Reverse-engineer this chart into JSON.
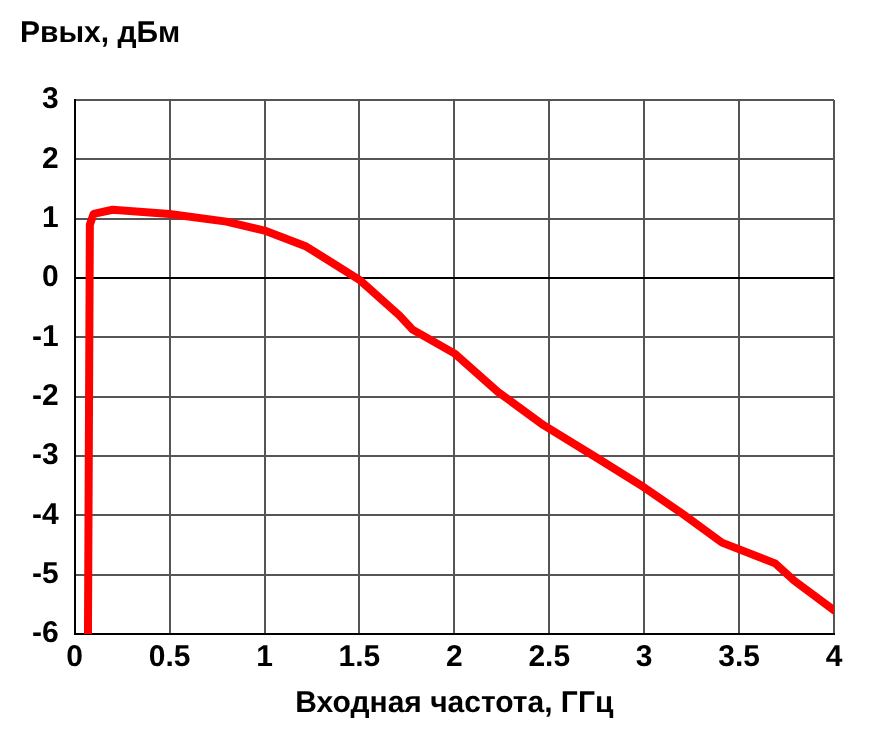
{
  "chart_data": {
    "type": "line",
    "ylabel": "Pвых, дБм",
    "xlabel": "Входная частота, ГГц",
    "x": [
      0.07,
      0.08,
      0.1,
      0.2,
      0.5,
      0.8,
      1.0,
      1.22,
      1.5,
      1.71,
      1.78,
      2.0,
      2.23,
      2.47,
      2.75,
      3.0,
      3.2,
      3.41,
      3.69,
      3.79,
      4.0
    ],
    "series": [
      {
        "color": "#ff0000",
        "values": [
          -6,
          0.9,
          1.08,
          1.15,
          1.08,
          0.95,
          0.8,
          0.53,
          -0.03,
          -0.63,
          -0.87,
          -1.27,
          -1.92,
          -2.48,
          -3.03,
          -3.53,
          -3.97,
          -4.46,
          -4.81,
          -5.1,
          -5.6
        ]
      }
    ],
    "xlim": [
      0,
      4
    ],
    "xticks": [
      0,
      0.5,
      1,
      1.5,
      2,
      2.5,
      3,
      3.5,
      4
    ],
    "ylim": [
      -6,
      3
    ],
    "yticks": [
      -6,
      -5,
      -4,
      -3,
      -2,
      -1,
      0,
      1,
      2,
      3
    ],
    "grid": true,
    "legend": false,
    "marker": "none",
    "line_style": "solid"
  }
}
